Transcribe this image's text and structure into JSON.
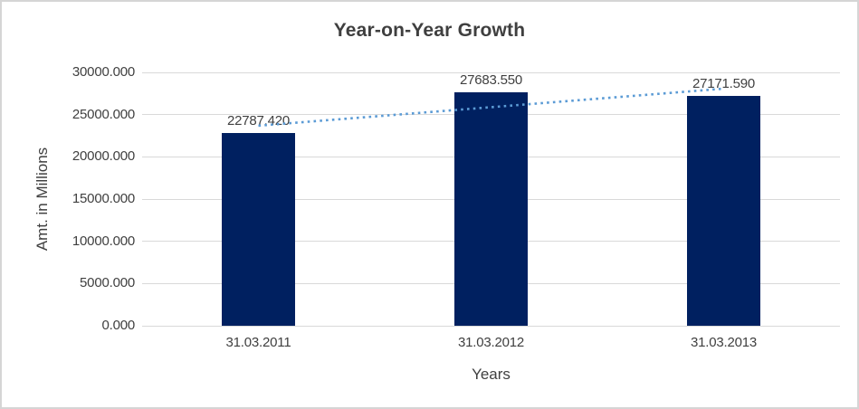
{
  "window": {
    "background": "#FFFFFF",
    "border_color": "#D5D5D5"
  },
  "chart_data": {
    "type": "bar",
    "title": "Year-on-Year Growth",
    "xlabel": "Years",
    "ylabel": "Amt. in Millions",
    "categories": [
      "31.03.2011",
      "31.03.2012",
      "31.03.2013"
    ],
    "values": [
      22787.42,
      27683.55,
      27171.59
    ],
    "data_labels": [
      "22787.420",
      "27683.550",
      "27171.590"
    ],
    "ylim": [
      0,
      30000
    ],
    "ytick_step": 5000,
    "ytick_labels": [
      "0.000",
      "5000.000",
      "10000.000",
      "15000.000",
      "20000.000",
      "25000.000",
      "30000.000"
    ],
    "grid": true,
    "legend": "none",
    "bar_color": "#002060",
    "gridline_color": "#D9D9D9",
    "text_color": "#404040",
    "title_color": "#3F3F3F",
    "trendline": {
      "type": "linear",
      "style": "dotted",
      "color": "#5B9BD5"
    }
  }
}
